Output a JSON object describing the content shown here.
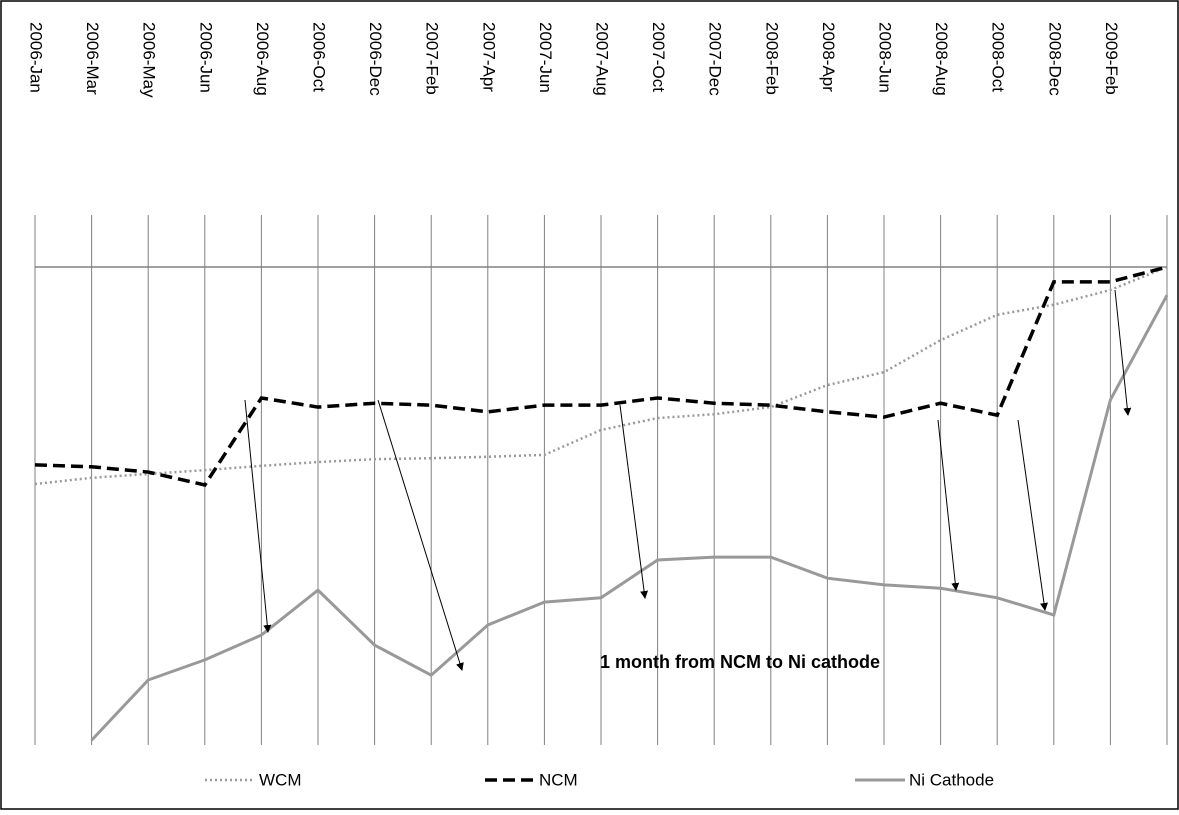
{
  "chart_data": {
    "type": "line",
    "categories": [
      "2006-Jan",
      "2006-Mar",
      "2006-May",
      "2006-Jun",
      "2006-Aug",
      "2006-Oct",
      "2006-Dec",
      "2007-Feb",
      "2007-Apr",
      "2007-Jun",
      "2007-Aug",
      "2007-Oct",
      "2007-Dec",
      "2008-Feb",
      "2008-Apr",
      "2008-Jun",
      "2008-Aug",
      "2008-Oct",
      "2008-Dec",
      "2009-Feb",
      null
    ],
    "series": [
      {
        "name": "WCM",
        "color": "#999999",
        "style": "dotted",
        "values": [
          54.6,
          55.9,
          56.7,
          57.5,
          58.4,
          59.2,
          59.8,
          60.0,
          60.3,
          60.7,
          65.9,
          68.4,
          69.2,
          70.7,
          75.3,
          78.0,
          84.7,
          90.0,
          92.1,
          95.2,
          100
        ]
      },
      {
        "name": "NCM",
        "color": "#000000",
        "style": "dashed",
        "values": [
          58.6,
          58.2,
          57.1,
          54.4,
          72.6,
          70.7,
          71.5,
          71.1,
          69.7,
          71.1,
          71.1,
          72.6,
          71.5,
          71.1,
          69.7,
          68.6,
          71.5,
          69.0,
          96.9,
          96.9,
          100
        ]
      },
      {
        "name": "Ni Cathode",
        "color": "#999999",
        "style": "solid",
        "values": [
          null,
          1.0,
          13.6,
          17.8,
          23.0,
          32.4,
          20.9,
          14.6,
          25.1,
          29.9,
          30.8,
          38.7,
          39.3,
          39.3,
          34.9,
          33.5,
          32.8,
          30.8,
          27.2,
          72.2,
          94.1
        ]
      }
    ],
    "ylim": [
      0,
      100
    ],
    "annotation": "1 month from NCM to Ni cathode",
    "grid": true,
    "legend": "bottom"
  }
}
